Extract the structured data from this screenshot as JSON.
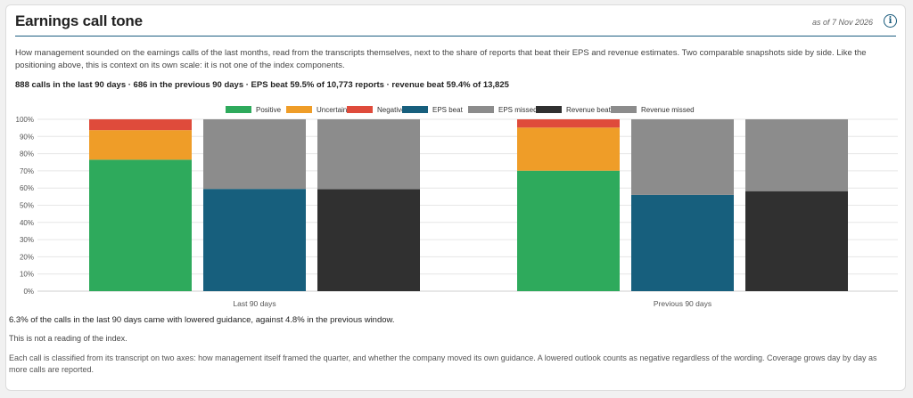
{
  "header": {
    "title": "Earnings call tone",
    "as_of": "as of 7 Nov 2026",
    "info_glyph": "i"
  },
  "description": "How management sounded on the earnings calls of the last months, read from the transcripts themselves, next to the share of reports that beat their EPS and revenue estimates. Two comparable snapshots side by side. Like the positioning above, this is context on its own scale: it is not one of the index components.",
  "summary": "888 calls in the last 90 days · 686 in the previous 90 days · EPS beat 59.5% of 10,773 reports · revenue beat 59.4% of 13,825",
  "notes": {
    "guidance": "6.3% of the calls in the last 90 days came with lowered guidance, against 4.8% in the previous window.",
    "disclaimer": "This is not a reading of the index.",
    "method": "Each call is classified from its transcript on two axes: how management itself framed the quarter, and whether the company moved its own guidance. A lowered outlook counts as negative regardless of the wording. Coverage grows day by day as more calls are reported."
  },
  "chart_data": {
    "type": "bar",
    "stacked": true,
    "title": "",
    "xlabel": "",
    "ylabel": "",
    "ylim": [
      0,
      100
    ],
    "y_ticks": [
      "0%",
      "10%",
      "20%",
      "30%",
      "40%",
      "50%",
      "60%",
      "70%",
      "80%",
      "90%",
      "100%"
    ],
    "grid": true,
    "legend_position": "top-center",
    "legend": [
      {
        "name": "Positive",
        "color": "#2eaa5c"
      },
      {
        "name": "Uncertain",
        "color": "#ef9d28"
      },
      {
        "name": "Negative",
        "color": "#df4b3b"
      },
      {
        "name": "EPS beat",
        "color": "#175f7d"
      },
      {
        "name": "EPS missed",
        "color": "#8c8c8c"
      },
      {
        "name": "Revenue beat",
        "color": "#303030"
      },
      {
        "name": "Revenue missed",
        "color": "#8c8c8c"
      }
    ],
    "groups": [
      {
        "label": "Last 90 days",
        "bars": [
          {
            "segments": [
              {
                "name": "Positive",
                "value": 76.5,
                "color": "#2eaa5c"
              },
              {
                "name": "Uncertain",
                "value": 17.2,
                "color": "#ef9d28"
              },
              {
                "name": "Negative",
                "value": 6.3,
                "color": "#df4b3b"
              }
            ]
          },
          {
            "segments": [
              {
                "name": "EPS beat",
                "value": 59.5,
                "color": "#175f7d"
              },
              {
                "name": "EPS missed",
                "value": 40.5,
                "color": "#8c8c8c"
              }
            ]
          },
          {
            "segments": [
              {
                "name": "Revenue beat",
                "value": 59.4,
                "color": "#303030"
              },
              {
                "name": "Revenue missed",
                "value": 40.6,
                "color": "#8c8c8c"
              }
            ]
          }
        ]
      },
      {
        "label": "Previous 90 days",
        "bars": [
          {
            "segments": [
              {
                "name": "Positive",
                "value": 70.1,
                "color": "#2eaa5c"
              },
              {
                "name": "Uncertain",
                "value": 25.1,
                "color": "#ef9d28"
              },
              {
                "name": "Negative",
                "value": 4.8,
                "color": "#df4b3b"
              }
            ]
          },
          {
            "segments": [
              {
                "name": "EPS beat",
                "value": 56.0,
                "color": "#175f7d"
              },
              {
                "name": "EPS missed",
                "value": 44.0,
                "color": "#8c8c8c"
              }
            ]
          },
          {
            "segments": [
              {
                "name": "Revenue beat",
                "value": 58.2,
                "color": "#303030"
              },
              {
                "name": "Revenue missed",
                "value": 41.8,
                "color": "#8c8c8c"
              }
            ]
          }
        ]
      }
    ]
  }
}
